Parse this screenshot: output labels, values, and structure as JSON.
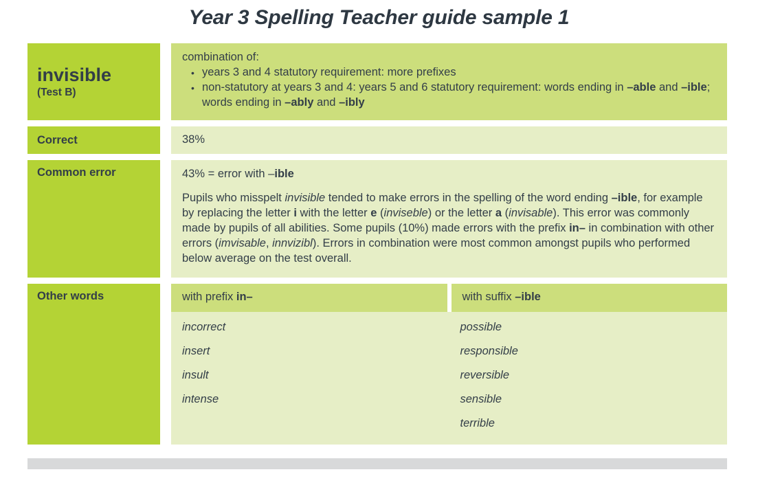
{
  "title": "Year 3 Spelling Teacher guide sample 1",
  "bullet_char": "•",
  "colors": {
    "header_green": "#b4d335",
    "medium_green": "#ccde7c",
    "light_green": "#e6eec6",
    "footer_gray": "#d8d9da",
    "text": "#333e48"
  },
  "word_row": {
    "term": "invisible",
    "test": "(Test B)",
    "intro": "combination of:",
    "bullet1": "years 3 and 4 statutory requirement: more prefixes",
    "bullet2": [
      {
        "t": "non-statutory at years 3 and 4: years 5 and 6 statutory requirement: words ending in "
      },
      {
        "t": "–able"
      },
      {
        "t": " and "
      },
      {
        "t": "–ible"
      },
      {
        "t": "; words ending in "
      },
      {
        "t": "–ably"
      },
      {
        "t": " and "
      },
      {
        "t": "–ibly"
      }
    ]
  },
  "correct_row": {
    "label": "Correct",
    "value": "38%"
  },
  "common_error_row": {
    "label": "Common error",
    "heading": [
      {
        "t": "43% = error with –"
      },
      {
        "t": "ible"
      }
    ],
    "paragraph": [
      {
        "t": "Pupils who misspelt "
      },
      {
        "t": "invisible"
      },
      {
        "t": " tended to make errors in the spelling of the word ending "
      },
      {
        "t": "–ible"
      },
      {
        "t": ", for example by replacing the letter "
      },
      {
        "t": "i"
      },
      {
        "t": " with the letter "
      },
      {
        "t": "e"
      },
      {
        "t": " ("
      },
      {
        "t": "inviseble"
      },
      {
        "t": ") or the letter "
      },
      {
        "t": "a"
      },
      {
        "t": " ("
      },
      {
        "t": "invisable"
      },
      {
        "t": "). This error was commonly made by pupils of all abilities. Some pupils (10%) made errors with the prefix "
      },
      {
        "t": "in–"
      },
      {
        "t": " in combination with other errors ("
      },
      {
        "t": "imvisable"
      },
      {
        "t": ", "
      },
      {
        "t": "innvizibl"
      },
      {
        "t": "). Errors in combination were most common amongst pupils who performed below average on the test overall."
      }
    ]
  },
  "other_words_row": {
    "label": "Other words",
    "col1_header": [
      {
        "t": "with prefix "
      },
      {
        "t": "in–"
      }
    ],
    "col2_header": [
      {
        "t": "with suffix "
      },
      {
        "t": "–ible"
      }
    ],
    "col1_words": [
      "incorrect",
      "insert",
      "insult",
      "intense"
    ],
    "col2_words": [
      "possible",
      "responsible",
      "reversible",
      "sensible",
      "terrible"
    ]
  }
}
